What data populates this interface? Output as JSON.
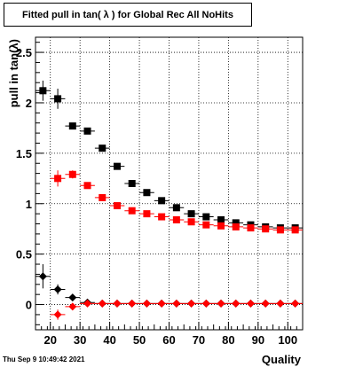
{
  "chart_data": {
    "type": "scatter",
    "title": "Fitted pull in tan( λ ) for Global Rec All NoHits",
    "xlabel": "Quality",
    "ylabel": "pull in tan(λ)",
    "xlim": [
      15,
      105
    ],
    "ylim": [
      -0.25,
      2.65
    ],
    "grid": true,
    "x_ticks": [
      20,
      30,
      40,
      50,
      60,
      70,
      80,
      90,
      100
    ],
    "y_ticks": [
      0,
      0.5,
      1,
      1.5,
      2,
      2.5
    ],
    "y_tick_labels": [
      "0",
      "0.5",
      "1",
      "1.5",
      "2",
      "2.5"
    ],
    "series": [
      {
        "marker": "square",
        "color": "#000000",
        "points": [
          {
            "x": 17.5,
            "y": 2.12,
            "ey": 0.1
          },
          {
            "x": 22.5,
            "y": 2.04,
            "ey": 0.1
          },
          {
            "x": 27.5,
            "y": 1.77,
            "ey": 0.03
          },
          {
            "x": 32.5,
            "y": 1.72,
            "ey": 0.02
          },
          {
            "x": 37.5,
            "y": 1.55,
            "ey": 0.02
          },
          {
            "x": 42.5,
            "y": 1.37,
            "ey": 0.02
          },
          {
            "x": 47.5,
            "y": 1.2,
            "ey": 0.02
          },
          {
            "x": 52.5,
            "y": 1.11,
            "ey": 0.02
          },
          {
            "x": 57.5,
            "y": 1.03,
            "ey": 0.02
          },
          {
            "x": 62.5,
            "y": 0.96,
            "ey": 0.02
          },
          {
            "x": 67.5,
            "y": 0.9,
            "ey": 0.02
          },
          {
            "x": 72.5,
            "y": 0.87,
            "ey": 0.02
          },
          {
            "x": 77.5,
            "y": 0.84,
            "ey": 0.02
          },
          {
            "x": 82.5,
            "y": 0.81,
            "ey": 0.02
          },
          {
            "x": 87.5,
            "y": 0.79,
            "ey": 0.02
          },
          {
            "x": 92.5,
            "y": 0.77,
            "ey": 0.02
          },
          {
            "x": 97.5,
            "y": 0.76,
            "ey": 0.02
          },
          {
            "x": 102.5,
            "y": 0.76,
            "ey": 0.02
          }
        ]
      },
      {
        "marker": "square",
        "color": "#ff0000",
        "points": [
          {
            "x": 22.5,
            "y": 1.25,
            "ey": 0.08
          },
          {
            "x": 27.5,
            "y": 1.29,
            "ey": 0.04
          },
          {
            "x": 32.5,
            "y": 1.18,
            "ey": 0.02
          },
          {
            "x": 37.5,
            "y": 1.06,
            "ey": 0.02
          },
          {
            "x": 42.5,
            "y": 0.98,
            "ey": 0.02
          },
          {
            "x": 47.5,
            "y": 0.93,
            "ey": 0.02
          },
          {
            "x": 52.5,
            "y": 0.9,
            "ey": 0.02
          },
          {
            "x": 57.5,
            "y": 0.87,
            "ey": 0.02
          },
          {
            "x": 62.5,
            "y": 0.84,
            "ey": 0.02
          },
          {
            "x": 67.5,
            "y": 0.82,
            "ey": 0.02
          },
          {
            "x": 72.5,
            "y": 0.79,
            "ey": 0.02
          },
          {
            "x": 77.5,
            "y": 0.78,
            "ey": 0.02
          },
          {
            "x": 82.5,
            "y": 0.77,
            "ey": 0.02
          },
          {
            "x": 87.5,
            "y": 0.76,
            "ey": 0.02
          },
          {
            "x": 92.5,
            "y": 0.75,
            "ey": 0.02
          },
          {
            "x": 97.5,
            "y": 0.74,
            "ey": 0.02
          },
          {
            "x": 102.5,
            "y": 0.74,
            "ey": 0.02
          }
        ]
      },
      {
        "marker": "diamond",
        "color": "#000000",
        "points": [
          {
            "x": 17.5,
            "y": 0.28,
            "ey": 0.12
          },
          {
            "x": 22.5,
            "y": 0.15,
            "ey": 0.05
          },
          {
            "x": 27.5,
            "y": 0.07,
            "ey": 0.02
          },
          {
            "x": 32.5,
            "y": 0.02,
            "ey": 0.01
          },
          {
            "x": 37.5,
            "y": 0.01,
            "ey": 0.01
          },
          {
            "x": 42.5,
            "y": 0.01,
            "ey": 0.01
          },
          {
            "x": 47.5,
            "y": 0.01,
            "ey": 0.01
          },
          {
            "x": 52.5,
            "y": 0.01,
            "ey": 0.01
          },
          {
            "x": 57.5,
            "y": 0.01,
            "ey": 0.01
          },
          {
            "x": 62.5,
            "y": 0.01,
            "ey": 0.01
          },
          {
            "x": 67.5,
            "y": 0.01,
            "ey": 0.01
          },
          {
            "x": 72.5,
            "y": 0.01,
            "ey": 0.01
          },
          {
            "x": 77.5,
            "y": 0.01,
            "ey": 0.01
          },
          {
            "x": 82.5,
            "y": 0.01,
            "ey": 0.01
          },
          {
            "x": 87.5,
            "y": 0.01,
            "ey": 0.01
          },
          {
            "x": 92.5,
            "y": 0.01,
            "ey": 0.01
          },
          {
            "x": 97.5,
            "y": 0.01,
            "ey": 0.01
          },
          {
            "x": 102.5,
            "y": 0.01,
            "ey": 0.01
          }
        ]
      },
      {
        "marker": "diamond",
        "color": "#ff0000",
        "points": [
          {
            "x": 22.5,
            "y": -0.1,
            "ey": 0.05
          },
          {
            "x": 27.5,
            "y": -0.02,
            "ey": 0.02
          },
          {
            "x": 32.5,
            "y": 0.01,
            "ey": 0.01
          },
          {
            "x": 37.5,
            "y": 0.01,
            "ey": 0.01
          },
          {
            "x": 42.5,
            "y": 0.01,
            "ey": 0.01
          },
          {
            "x": 47.5,
            "y": 0.01,
            "ey": 0.01
          },
          {
            "x": 52.5,
            "y": 0.01,
            "ey": 0.01
          },
          {
            "x": 57.5,
            "y": 0.01,
            "ey": 0.01
          },
          {
            "x": 62.5,
            "y": 0.01,
            "ey": 0.01
          },
          {
            "x": 67.5,
            "y": 0.01,
            "ey": 0.01
          },
          {
            "x": 72.5,
            "y": 0.01,
            "ey": 0.01
          },
          {
            "x": 77.5,
            "y": 0.01,
            "ey": 0.01
          },
          {
            "x": 82.5,
            "y": 0.01,
            "ey": 0.01
          },
          {
            "x": 87.5,
            "y": 0.01,
            "ey": 0.01
          },
          {
            "x": 92.5,
            "y": 0.01,
            "ey": 0.01
          },
          {
            "x": 97.5,
            "y": 0.01,
            "ey": 0.01
          },
          {
            "x": 102.5,
            "y": 0.01,
            "ey": 0.01
          }
        ]
      }
    ]
  },
  "footer": {
    "timestamp": "Thu Sep  9 10:49:42 2021"
  }
}
